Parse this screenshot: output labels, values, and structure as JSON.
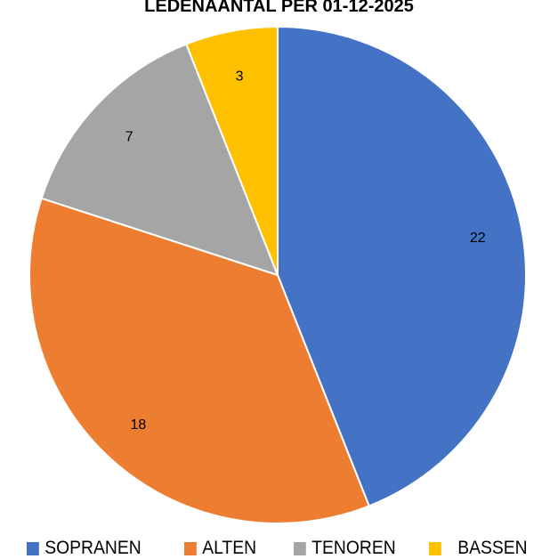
{
  "chart_data": {
    "type": "pie",
    "title": "LEDENAANTAL PER 01-12-2025",
    "categories": [
      "SOPRANEN",
      "ALTEN",
      "TENOREN",
      "BASSEN"
    ],
    "values": [
      22,
      18,
      7,
      3
    ],
    "colors": [
      "#4472C4",
      "#ED7D31",
      "#A5A5A5",
      "#FFC000"
    ],
    "data_labels": [
      "22",
      "18",
      "7",
      "3"
    ],
    "start": "top, clockwise",
    "legend_position": "bottom"
  }
}
